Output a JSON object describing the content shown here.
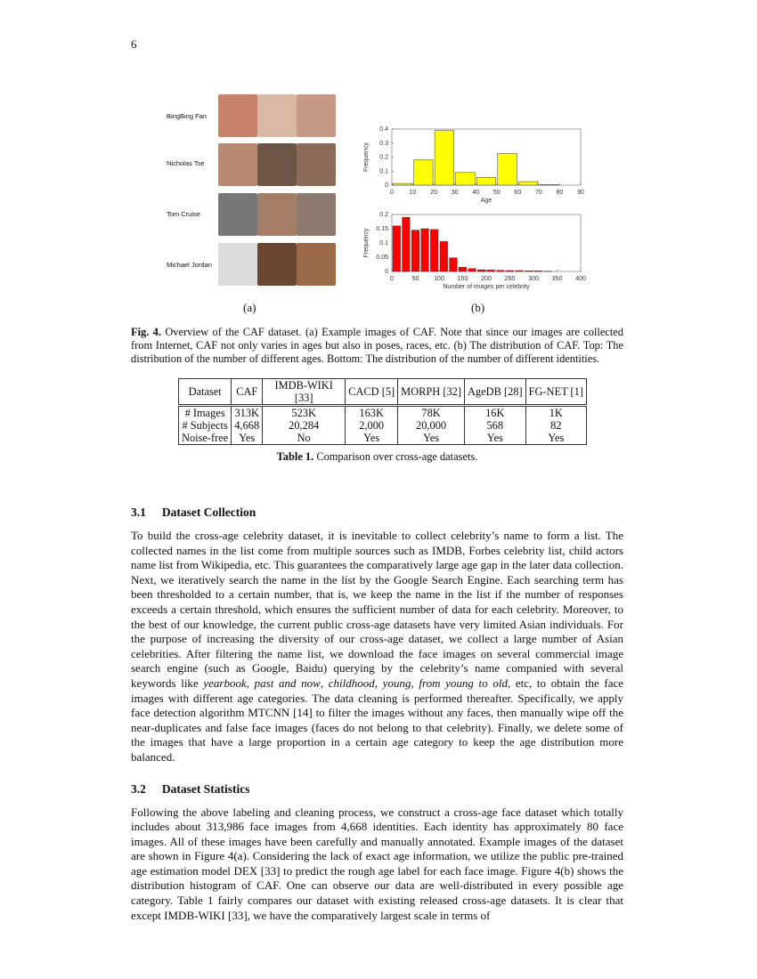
{
  "page_number": "6",
  "figure": {
    "names": [
      "BingBing Fan",
      "Nicholas Tse",
      "Tom Cruise",
      "Michael Jordan"
    ],
    "sub_a": "(a)",
    "sub_b": "(b)",
    "caption_label": "Fig. 4.",
    "caption": " Overview of the CAF dataset. (a) Example images of CAF. Note that since our images are collected from Internet, CAF not only varies in ages but also in poses, races, etc. (b) The distribution of CAF. Top: The distribution of the number of different ages. Bottom: The distribution of the number of different identities."
  },
  "chart_data": [
    {
      "type": "bar",
      "xlabel": "Age",
      "ylabel": "Frequency",
      "xlim": [
        0,
        90
      ],
      "ylim": [
        0,
        0.4
      ],
      "color": "#ffff00",
      "xticks": [
        0,
        10,
        20,
        30,
        40,
        50,
        60,
        70,
        80,
        90
      ],
      "yticks": [
        0,
        0.1,
        0.2,
        0.3,
        0.4
      ],
      "bin_width": 10,
      "bins": [
        0,
        10,
        20,
        30,
        40,
        50,
        60,
        70,
        80
      ],
      "values": [
        0.012,
        0.18,
        0.39,
        0.09,
        0.055,
        0.225,
        0.025,
        0.003,
        0
      ]
    },
    {
      "type": "bar",
      "xlabel": "Number of images per celebrity",
      "ylabel": "Frequency",
      "xlim": [
        0,
        400
      ],
      "ylim": [
        0,
        0.2
      ],
      "color": "#ff0000",
      "xticks": [
        0,
        50,
        100,
        150,
        200,
        250,
        300,
        350,
        400
      ],
      "yticks": [
        0,
        0.05,
        0.1,
        0.15,
        0.2
      ],
      "bin_width": 20,
      "bins": [
        0,
        20,
        40,
        60,
        80,
        100,
        120,
        140,
        160,
        180,
        200,
        220,
        240,
        260,
        280,
        300,
        320
      ],
      "values": [
        0.16,
        0.19,
        0.145,
        0.15,
        0.147,
        0.105,
        0.048,
        0.015,
        0.01,
        0.006,
        0.005,
        0.004,
        0.003,
        0.003,
        0.002,
        0.002,
        0.001
      ]
    }
  ],
  "table": {
    "headers": [
      "Dataset",
      "CAF",
      "IMDB-WIKI [33]",
      "CACD [5]",
      "MORPH [32]",
      "AgeDB [28]",
      "FG-NET [1]"
    ],
    "rows": [
      [
        "# Images",
        "313K",
        "523K",
        "163K",
        "78K",
        "16K",
        "1K"
      ],
      [
        "# Subjects",
        "4,668",
        "20,284",
        "2,000",
        "20,000",
        "568",
        "82"
      ],
      [
        "Noise-free",
        "Yes",
        "No",
        "Yes",
        "Yes",
        "Yes",
        "Yes"
      ]
    ],
    "caption_label": "Table 1.",
    "caption": " Comparison over cross-age datasets."
  },
  "s31": {
    "num": "3.1",
    "title": "Dataset Collection",
    "p1": "To build the cross-age celebrity dataset, it is inevitable to collect celebrity’s name to form a list. The collected names in the list come from multiple sources such as IMDB, Forbes celebrity list, child actors name list from Wikipedia, etc. This guarantees the comparatively large age gap in the later data collection. Next, we iteratively search the name in the list by the Google Search Engine. Each searching term has been thresholded to a certain number, that is, we keep the name in the list if the number of responses exceeds a certain threshold, which ensures the sufficient number of data for each celebrity. Moreover, to the best of our knowledge, the current public cross-age datasets have very limited Asian individuals. For the purpose of increasing the diversity of our cross-age dataset, we collect a large number of Asian celebrities. After filtering the name list, we download the face images on several commercial image search engine (such as Google, Baidu) querying by the celebrity’s name companied with several keywords like ",
    "k1": "yearbook",
    "c1": ", ",
    "k2": "past and now",
    "c2": ", ",
    "k3": "childhood",
    "c3": ", ",
    "k4": "young",
    "c4": ", ",
    "k5": "from young to old",
    "p2": ", etc, to obtain the face images with different age categories. The data cleaning is performed thereafter. Specifically, we apply face detection algorithm MTCNN [14] to filter the images without any faces, then manually wipe off the near-duplicates and false face images (faces do not belong to that celebrity). Finally, we delete some of the images that have a large proportion in a certain age category to keep the age distribution more balanced."
  },
  "s32": {
    "num": "3.2",
    "title": "Dataset Statistics",
    "p": "Following the above labeling and cleaning process, we construct a cross-age face dataset which totally includes about 313,986 face images from 4,668 identities. Each identity has approximately 80 face images. All of these images have been carefully and manually annotated. Example images of the dataset are shown in Figure 4(a). Considering the lack of exact age information, we utilize the public pre-trained age estimation model DEX [33] to predict the rough age label for each face image. Figure 4(b) shows the distribution histogram of CAF. One can observe our data are well-distributed in every possible age category. Table 1 fairly compares our dataset with existing released cross-age datasets. It is clear that except IMDB-WIKI [33], we have the comparatively largest scale in terms of"
  }
}
